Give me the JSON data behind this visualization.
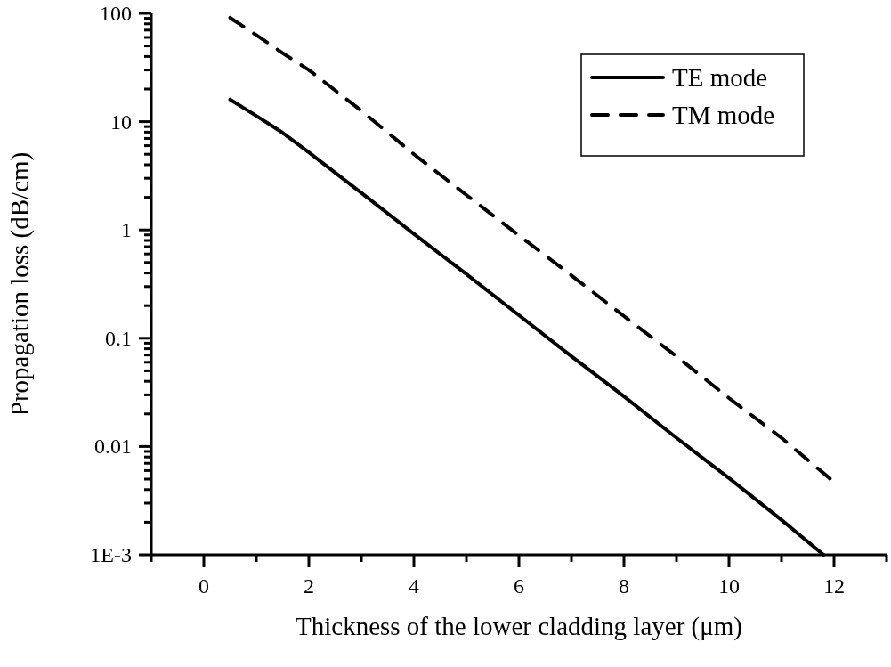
{
  "chart_data": {
    "type": "line",
    "xlabel": "Thickness of the lower cladding layer (μm)",
    "ylabel": "Propagation loss (dB/cm)",
    "log": "y",
    "legend": "top right",
    "grid": false,
    "marker": "none",
    "xlim": [
      -1,
      13
    ],
    "xticks": [
      {
        "value": -1,
        "label": null
      },
      0,
      {
        "value": 1,
        "label": null
      },
      2,
      {
        "value": 3,
        "label": null
      },
      4,
      {
        "value": 5,
        "label": null
      },
      6,
      {
        "value": 7,
        "label": null
      },
      8,
      {
        "value": 9,
        "label": null
      },
      10,
      {
        "value": 11,
        "label": null
      },
      12,
      {
        "value": 13,
        "label": null
      }
    ],
    "ylim": [
      0.001,
      100
    ],
    "yticks": [
      {
        "value": 0.001,
        "label": "1E-3"
      },
      {
        "value": 0.002,
        "label": null
      },
      {
        "value": 0.003,
        "label": null
      },
      {
        "value": 0.004,
        "label": null
      },
      {
        "value": 0.005,
        "label": null
      },
      {
        "value": 0.006,
        "label": null
      },
      {
        "value": 0.007,
        "label": null
      },
      {
        "value": 0.008,
        "label": null
      },
      {
        "value": 0.009,
        "label": null
      },
      0.01,
      {
        "value": 0.02,
        "label": null
      },
      {
        "value": 0.03,
        "label": null
      },
      {
        "value": 0.04,
        "label": null
      },
      {
        "value": 0.05,
        "label": null
      },
      {
        "value": 0.06,
        "label": null
      },
      {
        "value": 0.07,
        "label": null
      },
      {
        "value": 0.08,
        "label": null
      },
      {
        "value": 0.09,
        "label": null
      },
      0.1,
      {
        "value": 0.2,
        "label": null
      },
      {
        "value": 0.3,
        "label": null
      },
      {
        "value": 0.4,
        "label": null
      },
      {
        "value": 0.5,
        "label": null
      },
      {
        "value": 0.6,
        "label": null
      },
      {
        "value": 0.7,
        "label": null
      },
      {
        "value": 0.8,
        "label": null
      },
      {
        "value": 0.9,
        "label": null
      },
      1,
      {
        "value": 2,
        "label": null
      },
      {
        "value": 3,
        "label": null
      },
      {
        "value": 4,
        "label": null
      },
      {
        "value": 5,
        "label": null
      },
      {
        "value": 6,
        "label": null
      },
      {
        "value": 7,
        "label": null
      },
      {
        "value": 8,
        "label": null
      },
      {
        "value": 9,
        "label": null
      },
      10,
      {
        "value": 20,
        "label": null
      },
      {
        "value": 30,
        "label": null
      },
      {
        "value": 40,
        "label": null
      },
      {
        "value": 50,
        "label": null
      },
      {
        "value": 60,
        "label": null
      },
      {
        "value": 70,
        "label": null
      },
      {
        "value": 80,
        "label": null
      },
      {
        "value": 90,
        "label": null
      },
      100
    ],
    "series": [
      {
        "name": "TE mode",
        "color": "#000000",
        "line_style": "solid",
        "x": [
          0.5,
          1,
          1.5,
          2,
          3,
          4,
          5,
          6,
          7,
          8,
          9,
          10,
          11,
          11.8
        ],
        "values": [
          16,
          11.3,
          7.9,
          5.2,
          2.2,
          0.92,
          0.39,
          0.163,
          0.068,
          0.029,
          0.012,
          0.0051,
          0.0021,
          0.001
        ]
      },
      {
        "name": "TM mode",
        "color": "#000000",
        "line_style": "dashed",
        "x": [
          0.5,
          1,
          1.5,
          2,
          3,
          4,
          5,
          6,
          7,
          8,
          9,
          10,
          11,
          12
        ],
        "values": [
          91,
          63,
          43,
          30,
          12.6,
          5,
          2.1,
          0.89,
          0.38,
          0.16,
          0.068,
          0.028,
          0.012,
          0.0047
        ]
      }
    ]
  }
}
